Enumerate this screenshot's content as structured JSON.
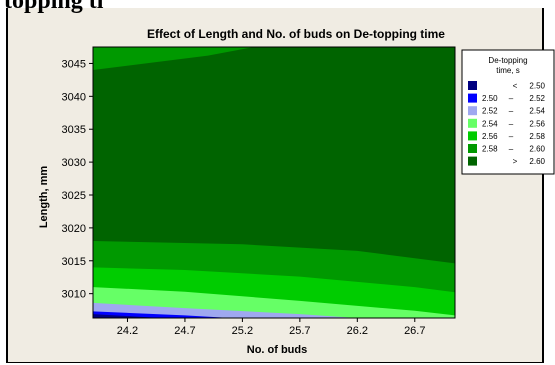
{
  "heading_fragment": "topping ti",
  "chart_data": {
    "type": "contour",
    "title": "Effect of Length and No. of buds on De-topping time",
    "xlabel": "No. of buds",
    "ylabel": "Length, mm",
    "xlim": [
      23.9,
      27.05
    ],
    "ylim": [
      3006.3,
      3047.5
    ],
    "xticks": [
      "24.2",
      "24.7",
      "25.2",
      "25.7",
      "26.2",
      "26.7"
    ],
    "yticks": [
      "3010",
      "3015",
      "3020",
      "3025",
      "3030",
      "3035",
      "3040",
      "3045"
    ],
    "legend": {
      "title_line1": "De-topping",
      "title_line2": "time, s",
      "position": "right",
      "entries": [
        {
          "op": "<",
          "lo": "",
          "hi": "2.50",
          "color": "#000080"
        },
        {
          "op": "–",
          "lo": "2.50",
          "hi": "2.52",
          "color": "#0000ff"
        },
        {
          "op": "–",
          "lo": "2.52",
          "hi": "2.54",
          "color": "#9fa8f0"
        },
        {
          "op": "–",
          "lo": "2.54",
          "hi": "2.56",
          "color": "#66ff66"
        },
        {
          "op": "–",
          "lo": "2.56",
          "hi": "2.58",
          "color": "#00cc00"
        },
        {
          "op": "–",
          "lo": "2.58",
          "hi": "2.60",
          "color": "#009900"
        },
        {
          "op": ">",
          "lo": "",
          "hi": "2.60",
          "color": "#006400"
        }
      ]
    },
    "regions": [
      {
        "band": "2.58 – 2.60",
        "color": "#009900",
        "boundary": [
          [
            23.9,
            3047.5
          ],
          [
            27.05,
            3047.5
          ]
        ]
      },
      {
        "band": "> 2.60",
        "color": "#006400",
        "boundary": [
          [
            23.9,
            3044.0
          ],
          [
            24.9,
            3046.2
          ],
          [
            25.3,
            3047.5
          ],
          [
            27.05,
            3047.5
          ]
        ]
      },
      {
        "band": "2.58 – 2.60",
        "color": "#009900",
        "boundary": [
          [
            23.9,
            3018.0
          ],
          [
            25.2,
            3017.5
          ],
          [
            26.2,
            3016.5
          ],
          [
            27.05,
            3014.6
          ]
        ]
      },
      {
        "band": "2.56 – 2.58",
        "color": "#00cc00",
        "boundary": [
          [
            23.9,
            3014.0
          ],
          [
            24.7,
            3013.6
          ],
          [
            25.7,
            3012.6
          ],
          [
            26.7,
            3011.0
          ],
          [
            27.05,
            3010.2
          ]
        ]
      },
      {
        "band": "2.54 – 2.56",
        "color": "#66ff66",
        "boundary": [
          [
            23.9,
            3011.0
          ],
          [
            24.7,
            3010.3
          ],
          [
            25.7,
            3008.9
          ],
          [
            26.7,
            3007.4
          ],
          [
            27.05,
            3006.7
          ]
        ]
      },
      {
        "band": "2.52 – 2.54",
        "color": "#9fa8f0",
        "boundary": [
          [
            23.9,
            3008.6
          ],
          [
            24.7,
            3007.8
          ],
          [
            25.7,
            3006.9
          ],
          [
            26.2,
            3006.3
          ]
        ]
      },
      {
        "band": "2.50 – 2.52",
        "color": "#0000ff",
        "boundary": [
          [
            23.9,
            3007.3
          ],
          [
            24.7,
            3006.7
          ],
          [
            25.1,
            3006.3
          ]
        ]
      },
      {
        "band": "< 2.50",
        "color": "#000080",
        "boundary": [
          [
            23.9,
            3006.9
          ],
          [
            24.3,
            3006.5
          ],
          [
            24.5,
            3006.3
          ]
        ]
      }
    ]
  }
}
